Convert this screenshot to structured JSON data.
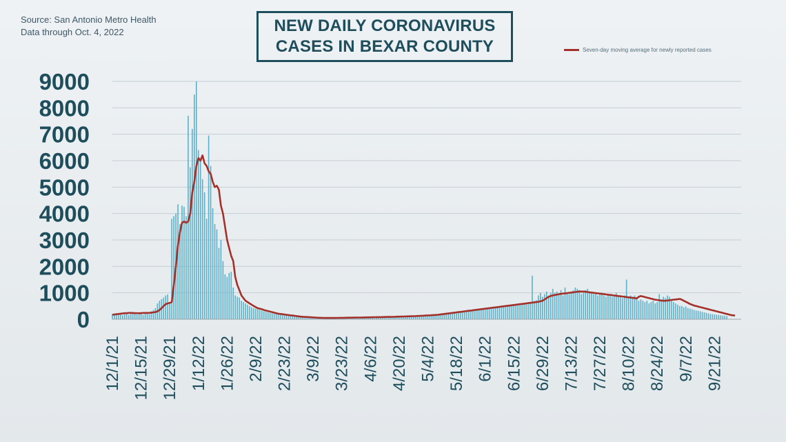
{
  "source": {
    "line1": "Source: San Antonio Metro Health",
    "line2": "Data through Oct. 4, 2022"
  },
  "colors": {
    "bars": "#59b1cb",
    "average": "#a4302a",
    "text": "#1e4d5c",
    "grid": "#c5ced3"
  },
  "chart_data": {
    "type": "bar",
    "title": "NEW DAILY CORONAVIRUS CASES IN BEXAR COUNTY",
    "title_lines": [
      "NEW DAILY CORONAVIRUS",
      "CASES IN BEXAR COUNTY"
    ],
    "xlabel": "",
    "ylabel": "",
    "ylim": [
      0,
      9000
    ],
    "yticks": [
      0,
      1000,
      2000,
      3000,
      4000,
      5000,
      6000,
      7000,
      8000,
      9000
    ],
    "grid": true,
    "legend": {
      "position": "top-right"
    },
    "x_range": [
      "12/1/21",
      "10/4/22"
    ],
    "x_ticks": [
      "12/1/21",
      "12/15/21",
      "12/29/21",
      "1/12/22",
      "1/26/22",
      "2/9/22",
      "2/23/22",
      "3/9/22",
      "3/23/22",
      "4/6/22",
      "4/20/22",
      "5/4/22",
      "5/18/22",
      "6/1/22",
      "6/15/22",
      "6/29/22",
      "7/13/22",
      "7/27/22",
      "8/10/22",
      "8/24/22",
      "9/7/22",
      "9/21/22"
    ],
    "series": [
      {
        "type": "bar",
        "x_start": "12/1/21",
        "values": [
          200,
          150,
          210,
          180,
          230,
          160,
          190,
          250,
          170,
          220,
          240,
          210,
          180,
          230,
          200,
          170,
          240,
          260,
          190,
          300,
          350,
          420,
          600,
          700,
          760,
          820,
          900,
          940,
          600,
          3800,
          3900,
          4000,
          4350,
          3600,
          4300,
          4250,
          3900,
          7700,
          5750,
          7200,
          8500,
          9000,
          6400,
          6000,
          5300,
          4800,
          3800,
          6950,
          5800,
          4200,
          3600,
          3400,
          2700,
          3000,
          2200,
          1700,
          1600,
          1750,
          1800,
          1200,
          900,
          850,
          820,
          700,
          650,
          600,
          550,
          500,
          450,
          420,
          400,
          380,
          350,
          330,
          300,
          280,
          260,
          240,
          230,
          210,
          200,
          190,
          180,
          170,
          160,
          150,
          140,
          130,
          120,
          110,
          100,
          95,
          90,
          80,
          75,
          70,
          65,
          60,
          58,
          55,
          52,
          50,
          50,
          50,
          50,
          50,
          50,
          52,
          54,
          55,
          56,
          58,
          60,
          60,
          60,
          62,
          64,
          65,
          66,
          68,
          70,
          70,
          72,
          74,
          76,
          78,
          80,
          80,
          82,
          84,
          86,
          88,
          90,
          90,
          92,
          95,
          98,
          100,
          102,
          105,
          108,
          110,
          112,
          115,
          118,
          120,
          124,
          128,
          132,
          136,
          140,
          145,
          150,
          155,
          160,
          165,
          170,
          180,
          190,
          200,
          210,
          220,
          230,
          240,
          250,
          260,
          270,
          280,
          290,
          300,
          310,
          320,
          330,
          340,
          350,
          360,
          370,
          380,
          390,
          400,
          410,
          420,
          430,
          440,
          450,
          460,
          470,
          480,
          490,
          500,
          510,
          520,
          530,
          540,
          550,
          560,
          570,
          580,
          590,
          600,
          610,
          620,
          630,
          640,
          650,
          1650,
          700,
          720,
          900,
          1000,
          850,
          950,
          1050,
          900,
          1000,
          1150,
          1000,
          1050,
          950,
          1100,
          900,
          1200,
          1000,
          950,
          1050,
          1100,
          1200,
          1150,
          1100,
          950,
          1000,
          1100,
          1150,
          1050,
          1000,
          950,
          1000,
          900,
          950,
          1000,
          900,
          850,
          950,
          900,
          850,
          900,
          1000,
          900,
          850,
          800,
          900,
          1500,
          850,
          900,
          850,
          900,
          800,
          700,
          750,
          700,
          650,
          700,
          600,
          650,
          700,
          600,
          650,
          950,
          700,
          850,
          800,
          900,
          850,
          700,
          650,
          600,
          550,
          500,
          500,
          450,
          480,
          420,
          400,
          380,
          350,
          330,
          320,
          300,
          280,
          260,
          240,
          220,
          200,
          190,
          180,
          170,
          160,
          150,
          140,
          130,
          120
        ]
      },
      {
        "type": "line",
        "name": "Seven-day moving average for newly reported cases",
        "x_start": "12/1/21",
        "values": [
          170,
          180,
          190,
          200,
          210,
          220,
          230,
          230,
          240,
          240,
          240,
          230,
          230,
          230,
          230,
          240,
          240,
          240,
          240,
          250,
          260,
          270,
          300,
          350,
          420,
          500,
          570,
          600,
          620,
          650,
          1300,
          2000,
          2800,
          3300,
          3650,
          3700,
          3650,
          3700,
          4000,
          4800,
          5200,
          5800,
          6100,
          6000,
          6200,
          5900,
          5800,
          5600,
          5500,
          5200,
          5000,
          5050,
          4900,
          4300,
          4000,
          3500,
          3000,
          2700,
          2400,
          2200,
          1600,
          1300,
          1100,
          900,
          800,
          700,
          650,
          600,
          550,
          500,
          460,
          420,
          400,
          380,
          350,
          330,
          310,
          290,
          270,
          250,
          230,
          210,
          200,
          190,
          180,
          170,
          160,
          150,
          140,
          130,
          120,
          110,
          100,
          95,
          90,
          85,
          80,
          75,
          70,
          65,
          60,
          58,
          55,
          52,
          50,
          50,
          50,
          50,
          50,
          50,
          52,
          54,
          55,
          56,
          58,
          60,
          60,
          60,
          62,
          64,
          65,
          66,
          68,
          70,
          70,
          72,
          74,
          76,
          78,
          80,
          80,
          82,
          84,
          86,
          88,
          90,
          90,
          92,
          95,
          98,
          100,
          102,
          105,
          108,
          110,
          112,
          115,
          118,
          120,
          124,
          128,
          132,
          136,
          140,
          145,
          150,
          155,
          160,
          165,
          170,
          180,
          190,
          200,
          210,
          220,
          230,
          240,
          250,
          260,
          270,
          280,
          290,
          300,
          310,
          320,
          330,
          340,
          350,
          360,
          370,
          380,
          390,
          400,
          410,
          420,
          430,
          440,
          450,
          460,
          470,
          480,
          490,
          500,
          510,
          520,
          530,
          540,
          550,
          560,
          570,
          580,
          590,
          600,
          610,
          620,
          630,
          640,
          650,
          660,
          680,
          700,
          750,
          800,
          850,
          880,
          900,
          920,
          930,
          950,
          960,
          970,
          980,
          990,
          1000,
          1010,
          1020,
          1030,
          1040,
          1050,
          1050,
          1050,
          1040,
          1030,
          1020,
          1010,
          1000,
          990,
          980,
          970,
          960,
          950,
          940,
          930,
          920,
          910,
          900,
          890,
          880,
          870,
          860,
          850,
          840,
          830,
          820,
          810,
          800,
          790,
          850,
          880,
          860,
          840,
          820,
          800,
          780,
          760,
          740,
          730,
          720,
          710,
          700,
          700,
          710,
          720,
          730,
          740,
          750,
          760,
          770,
          740,
          700,
          660,
          620,
          580,
          550,
          520,
          500,
          480,
          460,
          440,
          420,
          400,
          380,
          360,
          340,
          320,
          300,
          280,
          260,
          240,
          220,
          200,
          180,
          160,
          150,
          140
        ]
      }
    ]
  }
}
